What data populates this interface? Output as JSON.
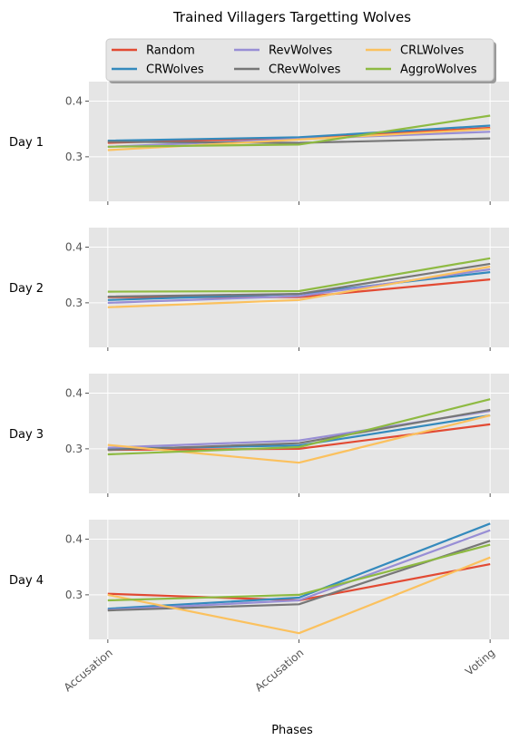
{
  "chart_data": {
    "type": "line",
    "title": "Trained Villagers Targetting Wolves",
    "xlabel": "Phases",
    "ylabel": "",
    "categories": [
      "Accusation",
      "Accusation",
      "Voting"
    ],
    "ylim": [
      0.22,
      0.435
    ],
    "yticks": [
      0.3,
      0.4
    ],
    "yticklabels": [
      "0.3",
      "0.4"
    ],
    "grid": true,
    "legend": {
      "placement": "top-center",
      "columns": 3
    },
    "series_styles": [
      {
        "name": "Random",
        "color": "#E24A33"
      },
      {
        "name": "CRWolves",
        "color": "#348ABD"
      },
      {
        "name": "RevWolves",
        "color": "#988ED5"
      },
      {
        "name": "CRevWolves",
        "color": "#777777"
      },
      {
        "name": "CRLWolves",
        "color": "#FBC15E"
      },
      {
        "name": "AggroWolves",
        "color": "#8EBA42"
      }
    ],
    "panels": [
      {
        "label": "Day 1",
        "series": [
          {
            "name": "Random",
            "values": [
              0.325,
              0.334,
              0.352
            ]
          },
          {
            "name": "CRWolves",
            "values": [
              0.329,
              0.335,
              0.356
            ]
          },
          {
            "name": "RevWolves",
            "values": [
              0.318,
              0.332,
              0.345
            ]
          },
          {
            "name": "CRevWolves",
            "values": [
              0.327,
              0.325,
              0.333
            ]
          },
          {
            "name": "CRLWolves",
            "values": [
              0.312,
              0.331,
              0.35
            ]
          },
          {
            "name": "AggroWolves",
            "values": [
              0.318,
              0.322,
              0.374
            ]
          }
        ]
      },
      {
        "label": "Day 2",
        "series": [
          {
            "name": "Random",
            "values": [
              0.31,
              0.31,
              0.342
            ]
          },
          {
            "name": "CRWolves",
            "values": [
              0.305,
              0.316,
              0.355
            ]
          },
          {
            "name": "RevWolves",
            "values": [
              0.3,
              0.312,
              0.36
            ]
          },
          {
            "name": "CRevWolves",
            "values": [
              0.311,
              0.316,
              0.37
            ]
          },
          {
            "name": "CRLWolves",
            "values": [
              0.292,
              0.305,
              0.365
            ]
          },
          {
            "name": "AggroWolves",
            "values": [
              0.32,
              0.321,
              0.38
            ]
          }
        ]
      },
      {
        "label": "Day 3",
        "series": [
          {
            "name": "Random",
            "values": [
              0.298,
              0.3,
              0.344
            ]
          },
          {
            "name": "CRWolves",
            "values": [
              0.3,
              0.306,
              0.36
            ]
          },
          {
            "name": "RevWolves",
            "values": [
              0.302,
              0.315,
              0.368
            ]
          },
          {
            "name": "CRevWolves",
            "values": [
              0.298,
              0.31,
              0.37
            ]
          },
          {
            "name": "CRLWolves",
            "values": [
              0.307,
              0.275,
              0.36
            ]
          },
          {
            "name": "AggroWolves",
            "values": [
              0.29,
              0.303,
              0.389
            ]
          }
        ]
      },
      {
        "label": "Day 4",
        "series": [
          {
            "name": "Random",
            "values": [
              0.302,
              0.29,
              0.355
            ]
          },
          {
            "name": "CRWolves",
            "values": [
              0.275,
              0.295,
              0.428
            ]
          },
          {
            "name": "RevWolves",
            "values": [
              0.273,
              0.29,
              0.416
            ]
          },
          {
            "name": "CRevWolves",
            "values": [
              0.272,
              0.283,
              0.397
            ]
          },
          {
            "name": "CRLWolves",
            "values": [
              0.3,
              0.231,
              0.367
            ]
          },
          {
            "name": "AggroWolves",
            "values": [
              0.29,
              0.3,
              0.39
            ]
          }
        ]
      }
    ]
  }
}
